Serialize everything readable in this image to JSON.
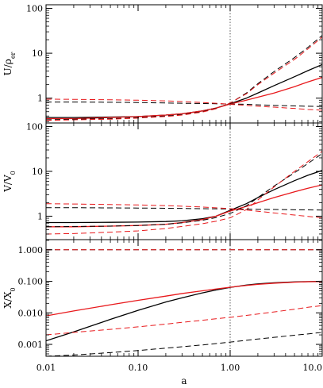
{
  "chart_data": {
    "type": "line",
    "xscale": "log",
    "xlim": [
      0.01,
      10.0
    ],
    "xlabel": "a",
    "x_ticks": [
      0.01,
      0.1,
      1.0,
      10.0
    ],
    "x_tick_labels": [
      "0.01",
      "0.10",
      "1.00",
      "10.0"
    ],
    "vline_x": 1.0,
    "colors": {
      "black": "#000000",
      "red": "#e8191c"
    },
    "x": [
      0.01,
      0.02,
      0.05,
      0.1,
      0.2,
      0.3,
      0.5,
      0.7,
      1.0,
      1.5,
      2.0,
      3.0,
      5.0,
      7.0,
      10.0
    ],
    "panels": [
      {
        "ylabel_main": "U/ρ",
        "ylabel_sub": "er",
        "yscale": "log",
        "ylim": [
          0.28,
          120
        ],
        "y_ticks": [
          1,
          10,
          100
        ],
        "y_tick_labels": [
          "1",
          "10",
          "100"
        ],
        "series": [
          {
            "color": "black",
            "dash": false,
            "values": [
              0.37,
              0.37,
              0.38,
              0.39,
              0.42,
              0.45,
              0.52,
              0.6,
              0.75,
              1.0,
              1.3,
              1.9,
              3.0,
              4.1,
              5.6
            ]
          },
          {
            "color": "red",
            "dash": false,
            "values": [
              0.35,
              0.35,
              0.37,
              0.39,
              0.42,
              0.45,
              0.52,
              0.6,
              0.74,
              0.9,
              1.05,
              1.3,
              1.8,
              2.3,
              2.9
            ]
          },
          {
            "color": "black",
            "dash": true,
            "values": [
              0.33,
              0.34,
              0.35,
              0.37,
              0.4,
              0.43,
              0.5,
              0.59,
              0.77,
              1.3,
              2.1,
              3.9,
              8.0,
              13.5,
              25.0
            ]
          },
          {
            "color": "red",
            "dash": true,
            "values": [
              0.32,
              0.33,
              0.34,
              0.36,
              0.39,
              0.42,
              0.49,
              0.58,
              0.78,
              1.25,
              2.0,
              3.6,
              7.3,
              12.5,
              23.0
            ]
          },
          {
            "color": "black",
            "dash": true,
            "values": [
              0.82,
              0.82,
              0.81,
              0.8,
              0.78,
              0.77,
              0.76,
              0.75,
              0.74,
              0.73,
              0.71,
              0.69,
              0.67,
              0.66,
              0.65
            ]
          },
          {
            "color": "red",
            "dash": true,
            "values": [
              0.95,
              0.94,
              0.92,
              0.9,
              0.87,
              0.84,
              0.8,
              0.77,
              0.73,
              0.69,
              0.66,
              0.63,
              0.59,
              0.56,
              0.54
            ]
          }
        ]
      },
      {
        "ylabel_main": "V/V",
        "ylabel_sub": "0",
        "yscale": "log",
        "ylim": [
          0.3,
          120
        ],
        "y_ticks": [
          1,
          10,
          100
        ],
        "y_tick_labels": [
          "1",
          "10",
          "100"
        ],
        "series": [
          {
            "color": "black",
            "dash": false,
            "values": [
              0.72,
              0.72,
              0.73,
              0.74,
              0.76,
              0.79,
              0.88,
              1.0,
              1.35,
              1.9,
              2.6,
              3.9,
              6.2,
              8.2,
              10.5
            ]
          },
          {
            "color": "red",
            "dash": false,
            "values": [
              0.58,
              0.58,
              0.6,
              0.62,
              0.66,
              0.72,
              0.84,
              1.0,
              1.3,
              1.65,
              2.0,
              2.6,
              3.5,
              4.2,
              5.0
            ]
          },
          {
            "color": "black",
            "dash": true,
            "values": [
              0.58,
              0.59,
              0.6,
              0.62,
              0.66,
              0.71,
              0.81,
              0.93,
              1.15,
              1.7,
              2.6,
              4.7,
              9.3,
              15.0,
              25.0
            ]
          },
          {
            "color": "red",
            "dash": true,
            "values": [
              0.4,
              0.41,
              0.44,
              0.47,
              0.53,
              0.59,
              0.68,
              0.77,
              0.92,
              1.4,
              2.3,
              4.5,
              10.0,
              16.5,
              28.0
            ]
          },
          {
            "color": "black",
            "dash": true,
            "values": [
              1.55,
              1.55,
              1.53,
              1.52,
              1.5,
              1.49,
              1.47,
              1.46,
              1.45,
              1.44,
              1.42,
              1.41,
              1.39,
              1.38,
              1.37
            ]
          },
          {
            "color": "red",
            "dash": true,
            "values": [
              1.9,
              1.87,
              1.82,
              1.78,
              1.72,
              1.67,
              1.6,
              1.54,
              1.47,
              1.37,
              1.29,
              1.18,
              1.06,
              0.99,
              0.92
            ]
          }
        ]
      },
      {
        "ylabel_main": "X/X",
        "ylabel_sub": "0",
        "yscale": "log",
        "ylim": [
          0.00042,
          2.1
        ],
        "y_ticks": [
          0.001,
          0.01,
          0.1,
          1.0
        ],
        "y_tick_labels": [
          "0.001",
          "0.010",
          "0.100",
          "1.000"
        ],
        "series": [
          {
            "color": "black",
            "dash": false,
            "values": [
              0.0013,
              0.0025,
              0.0062,
              0.012,
              0.022,
              0.03,
              0.043,
              0.053,
              0.064,
              0.076,
              0.083,
              0.09,
              0.096,
              0.098,
              0.1
            ]
          },
          {
            "color": "red",
            "dash": false,
            "values": [
              0.008,
              0.0115,
              0.018,
              0.025,
              0.034,
              0.041,
              0.05,
              0.057,
              0.065,
              0.074,
              0.08,
              0.087,
              0.094,
              0.097,
              0.098
            ]
          },
          {
            "color": "black",
            "dash": true,
            "values": [
              1.0,
              1.0,
              1.0,
              1.0,
              1.0,
              1.0,
              1.0,
              1.0,
              1.0,
              1.0,
              1.0,
              1.0,
              1.0,
              1.0,
              1.0
            ]
          },
          {
            "color": "red",
            "dash": true,
            "values": [
              1.0,
              1.0,
              1.0,
              1.0,
              1.0,
              1.0,
              1.0,
              1.0,
              1.0,
              1.0,
              1.0,
              1.0,
              1.0,
              1.0,
              1.0
            ]
          },
          {
            "color": "red",
            "dash": true,
            "values": [
              0.002,
              0.0024,
              0.003,
              0.0036,
              0.0044,
              0.005,
              0.0058,
              0.0065,
              0.0072,
              0.0083,
              0.0092,
              0.0107,
              0.013,
              0.015,
              0.017
            ]
          },
          {
            "color": "black",
            "dash": true,
            "values": [
              0.00042,
              0.00046,
              0.00055,
              0.00064,
              0.00076,
              0.00084,
              0.00096,
              0.00106,
              0.00118,
              0.00135,
              0.00148,
              0.00167,
              0.00195,
              0.00215,
              0.0024
            ]
          }
        ]
      }
    ]
  }
}
